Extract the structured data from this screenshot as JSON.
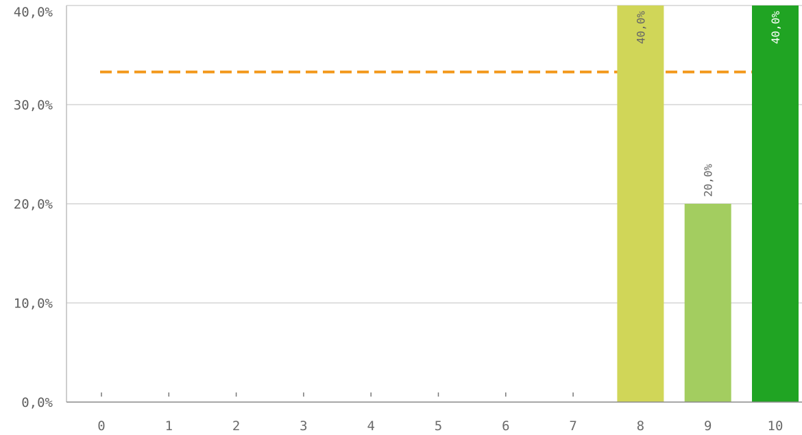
{
  "chart_data": {
    "type": "bar",
    "categories": [
      "0",
      "1",
      "2",
      "3",
      "4",
      "5",
      "6",
      "7",
      "8",
      "9",
      "10"
    ],
    "values": [
      0,
      0,
      0,
      0,
      0,
      0,
      0,
      0,
      40.0,
      20.0,
      40.0
    ],
    "data_labels": [
      "",
      "",
      "",
      "",
      "",
      "",
      "",
      "",
      "40,0%",
      "20,0%",
      "40,0%"
    ],
    "bar_colors": [
      "#d0d658",
      "#d0d658",
      "#d0d658",
      "#d0d658",
      "#d0d658",
      "#d0d658",
      "#d0d658",
      "#d0d658",
      "#d0d658",
      "#a3cd60",
      "#20a423"
    ],
    "data_label_colors": [
      "#666666",
      "#666666",
      "#666666",
      "#666666",
      "#666666",
      "#666666",
      "#666666",
      "#666666",
      "#666666",
      "#666666",
      "#ffffff"
    ],
    "y_ticks": [
      0,
      10,
      20,
      30,
      40
    ],
    "y_tick_labels": [
      "0,0%",
      "10,0%",
      "20,0%",
      "30,0%",
      "40,0%"
    ],
    "ylim": [
      0,
      40
    ],
    "reference_line": {
      "value": 33.3,
      "style": "dashed",
      "color": "#f39a1f"
    },
    "grid": true,
    "title": "",
    "xlabel": "",
    "ylabel": "",
    "colors": {
      "axis": "#bdbdbd",
      "grid": "#d4d4d4",
      "tick_text": "#666666"
    }
  }
}
